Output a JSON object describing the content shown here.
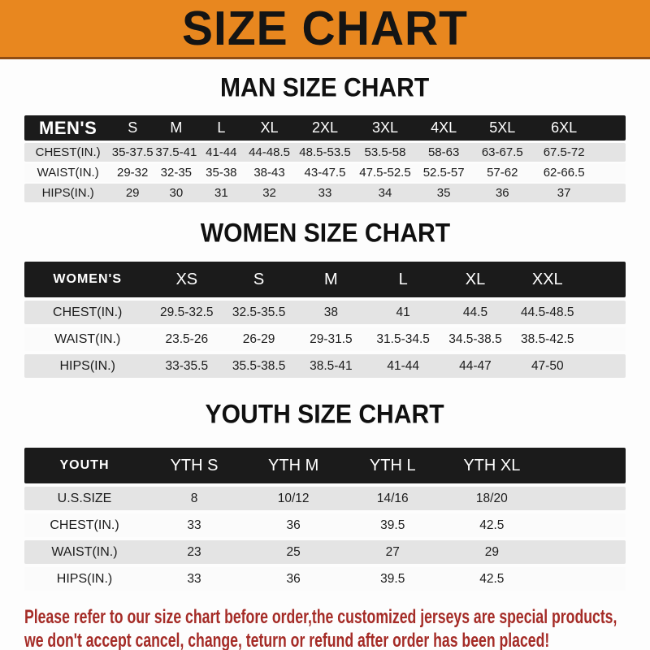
{
  "page": {
    "title": "SIZE CHART",
    "colors": {
      "header_bg": "#E8871F",
      "header_border": "#8F4D14",
      "band": "#1B1B1B",
      "row_gray": "#E4E4E4",
      "row_light": "#FBFBFB",
      "footer_text": "#A52C27",
      "text": "#1C1C1C"
    }
  },
  "sections": {
    "men": {
      "heading": "MAN SIZE CHART",
      "table": {
        "label": "MEN'S",
        "sizes": [
          "S",
          "M",
          "L",
          "XL",
          "2XL",
          "3XL",
          "4XL",
          "5XL",
          "6XL"
        ],
        "rows": [
          {
            "label": "CHEST(IN.)",
            "values": [
              "35-37.5",
              "37.5-41",
              "41-44",
              "44-48.5",
              "48.5-53.5",
              "53.5-58",
              "58-63",
              "63-67.5",
              "67.5-72"
            ]
          },
          {
            "label": "WAIST(IN.)",
            "values": [
              "29-32",
              "32-35",
              "35-38",
              "38-43",
              "43-47.5",
              "47.5-52.5",
              "52.5-57",
              "57-62",
              "62-66.5"
            ]
          },
          {
            "label": "HIPS(IN.)",
            "values": [
              "29",
              "30",
              "31",
              "32",
              "33",
              "34",
              "35",
              "36",
              "37"
            ]
          }
        ]
      }
    },
    "women": {
      "heading": "WOMEN SIZE CHART",
      "table": {
        "label": "WOMEN'S",
        "sizes": [
          "XS",
          "S",
          "M",
          "L",
          "XL",
          "XXL"
        ],
        "rows": [
          {
            "label": "CHEST(IN.)",
            "values": [
              "29.5-32.5",
              "32.5-35.5",
              "38",
              "41",
              "44.5",
              "44.5-48.5"
            ]
          },
          {
            "label": "WAIST(IN.)",
            "values": [
              "23.5-26",
              "26-29",
              "29-31.5",
              "31.5-34.5",
              "34.5-38.5",
              "38.5-42.5"
            ]
          },
          {
            "label": "HIPS(IN.)",
            "values": [
              "33-35.5",
              "35.5-38.5",
              "38.5-41",
              "41-44",
              "44-47",
              "47-50"
            ]
          }
        ]
      }
    },
    "youth": {
      "heading": "YOUTH SIZE CHART",
      "table": {
        "label": "YOUTH",
        "sizes": [
          "YTH S",
          "YTH M",
          "YTH L",
          "YTH XL"
        ],
        "rows": [
          {
            "label": "U.S.SIZE",
            "values": [
              "8",
              "10/12",
              "14/16",
              "18/20"
            ]
          },
          {
            "label": "CHEST(IN.)",
            "values": [
              "33",
              "36",
              "39.5",
              "42.5"
            ]
          },
          {
            "label": "WAIST(IN.)",
            "values": [
              "23",
              "25",
              "27",
              "29"
            ]
          },
          {
            "label": "HIPS(IN.)",
            "values": [
              "33",
              "36",
              "39.5",
              "42.5"
            ]
          }
        ]
      }
    }
  },
  "footer": {
    "lines": [
      "Please refer to our size chart before order,the customized jerseys are special products,",
      "we don't accept cancel, change, teturn or refund after order has been placed!"
    ]
  }
}
